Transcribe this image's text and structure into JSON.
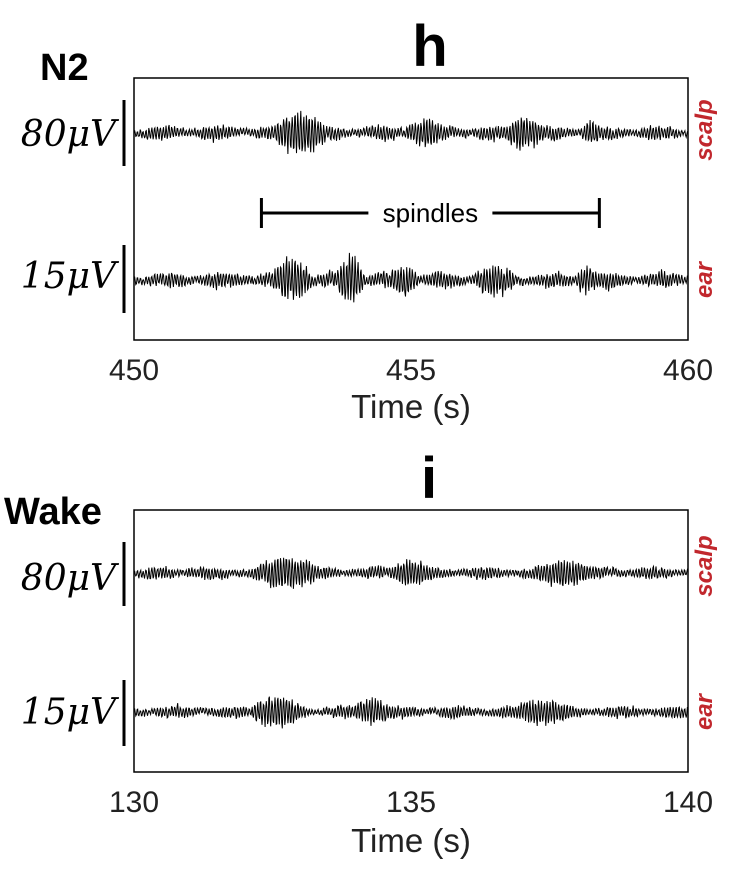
{
  "chart_data": [
    {
      "type": "line",
      "panel_label": "h",
      "stage": "N2",
      "xlabel": "Time (s)",
      "xlim": [
        450,
        460
      ],
      "xticks": [
        "450",
        "455",
        "460"
      ],
      "grid": false,
      "annotation": {
        "text": "spindles",
        "x_start": 452.3,
        "x_end": 458.4
      },
      "series": [
        {
          "name": "scalp",
          "scale_bar": "80μV",
          "color": "#000000",
          "bursts": [
            [
              452.4,
              453.6,
              0.9
            ],
            [
              454.8,
              455.7,
              0.6
            ],
            [
              456.6,
              457.5,
              0.7
            ],
            [
              458.0,
              458.5,
              0.45
            ]
          ]
        },
        {
          "name": "ear",
          "scale_bar": "15μV",
          "color": "#000000",
          "bursts": [
            [
              452.4,
              453.3,
              0.85
            ],
            [
              453.6,
              454.2,
              1.0
            ],
            [
              454.5,
              455.2,
              0.55
            ],
            [
              456.0,
              457.0,
              0.6
            ],
            [
              457.9,
              458.5,
              0.55
            ]
          ]
        }
      ]
    },
    {
      "type": "line",
      "panel_label": "i",
      "stage": "Wake",
      "xlabel": "Time (s)",
      "xlim": [
        130,
        140
      ],
      "xticks": [
        "130",
        "135",
        "140"
      ],
      "grid": false,
      "series": [
        {
          "name": "scalp",
          "scale_bar": "80μV",
          "color": "#000000",
          "bursts": [
            [
              132.0,
              133.5,
              0.8
            ],
            [
              134.5,
              135.5,
              0.6
            ],
            [
              137.0,
              138.5,
              0.65
            ]
          ]
        },
        {
          "name": "ear",
          "scale_bar": "15μV",
          "color": "#000000",
          "bursts": [
            [
              132.0,
              133.2,
              0.8
            ],
            [
              133.8,
              134.8,
              0.6
            ],
            [
              136.6,
              138.2,
              0.6
            ]
          ]
        }
      ]
    }
  ],
  "colors": {
    "trace": "#000000",
    "channel_label": "#c1272d",
    "axis": "#000000"
  }
}
